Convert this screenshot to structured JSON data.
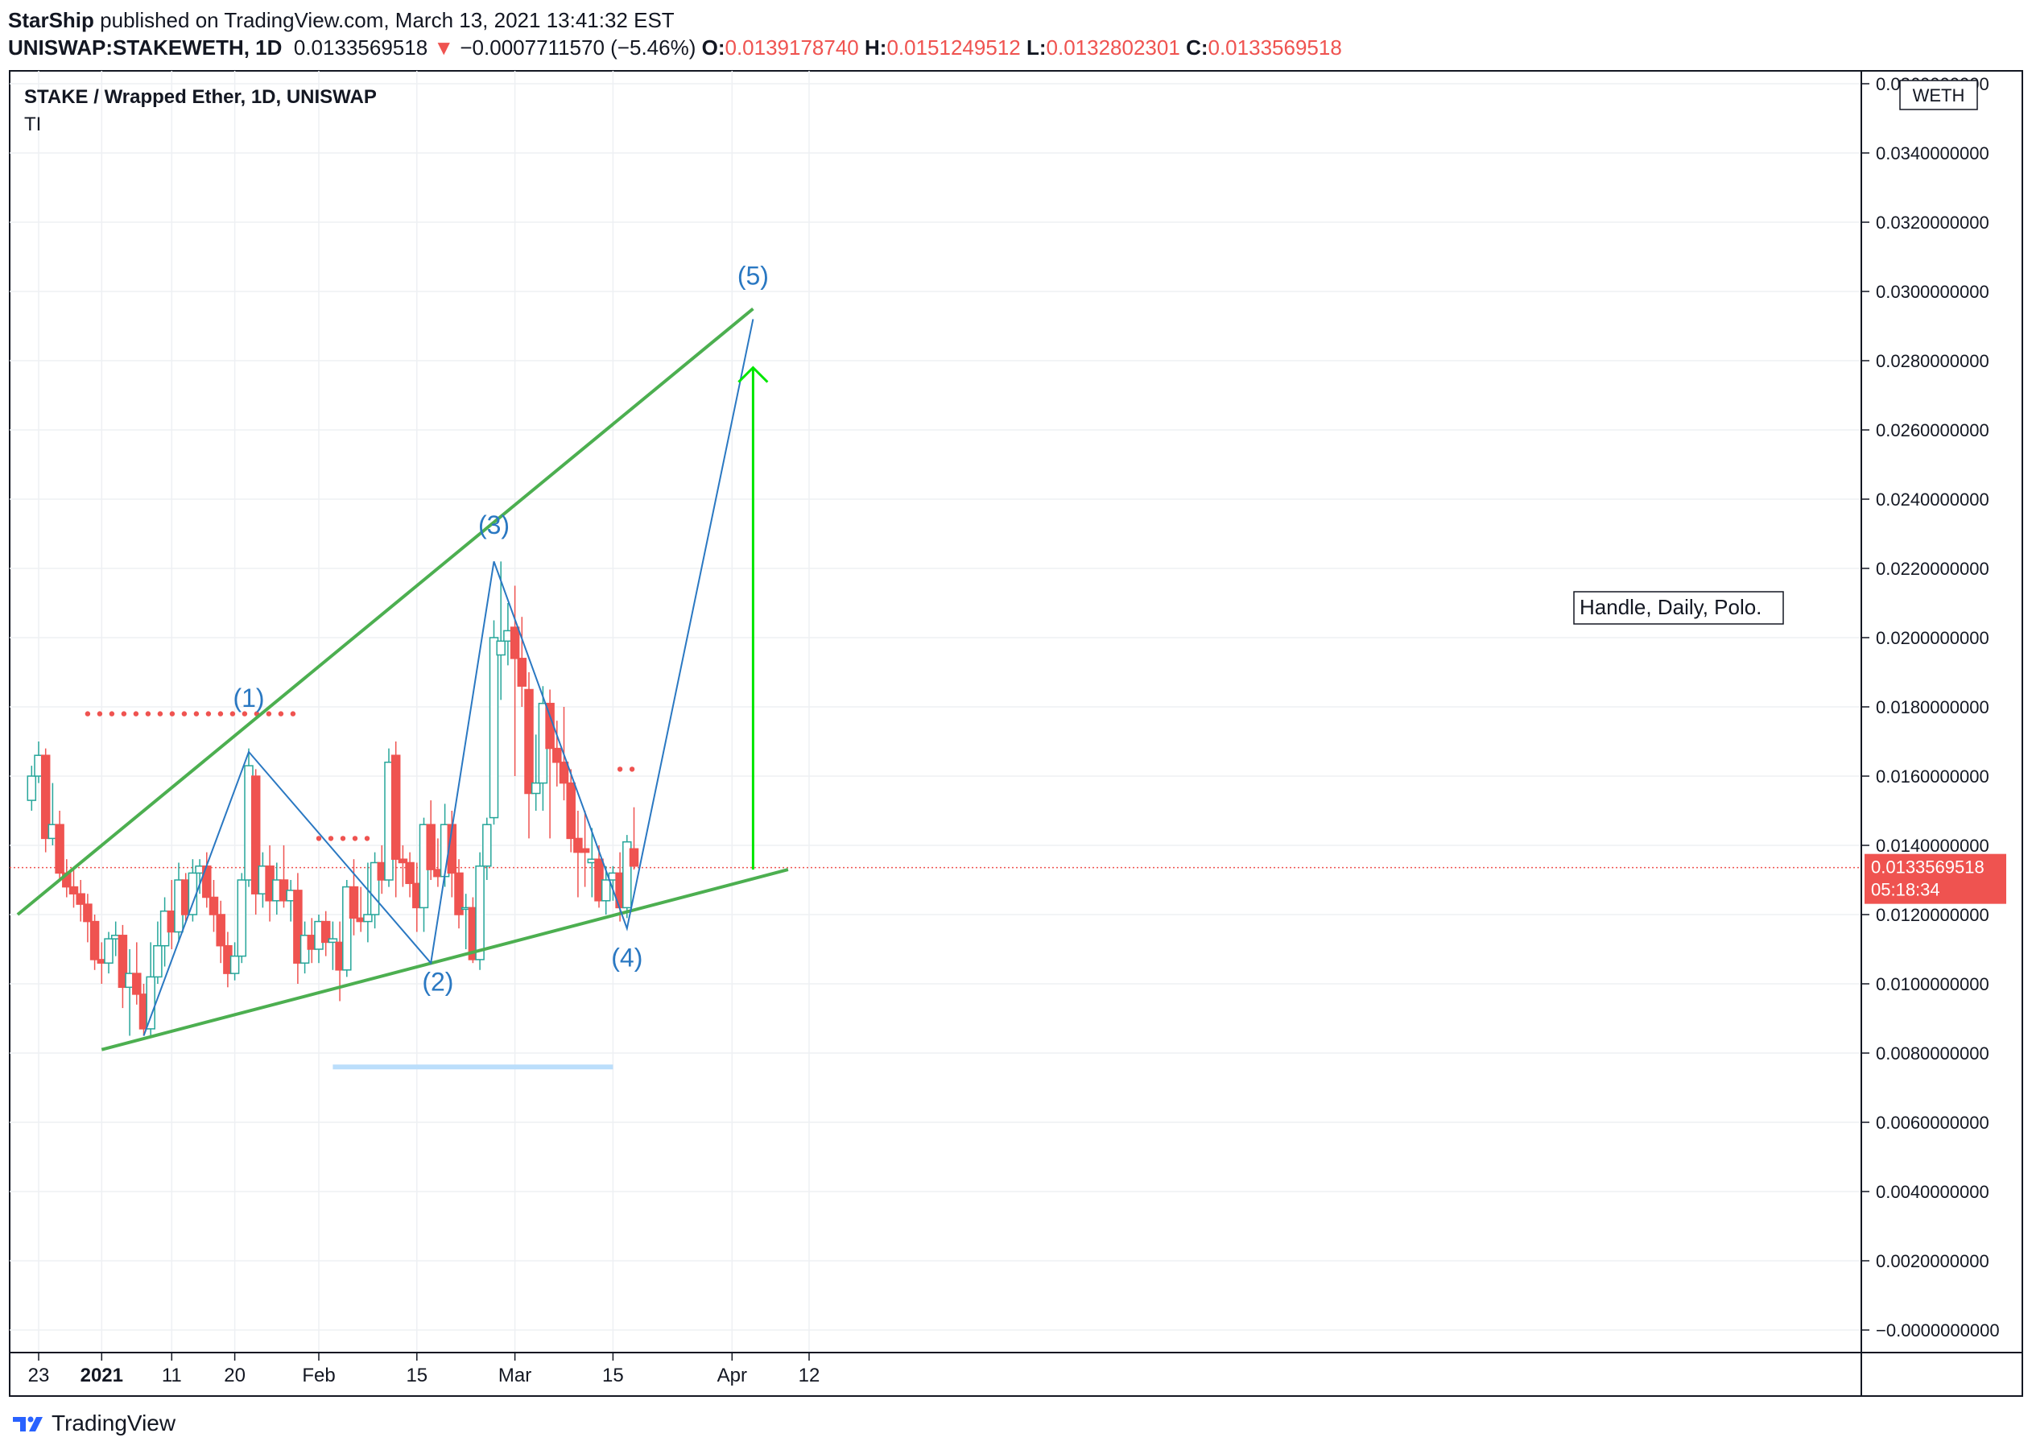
{
  "header": {
    "author": "StarShip",
    "published": "published on TradingView.com, March 13, 2021 13:41:32 EST"
  },
  "ticker": {
    "symbol": "UNISWAP:STAKEWETH, 1D",
    "last": "0.0133569518",
    "arrow": "▼",
    "change": "−0.0007711570 (−5.46%)",
    "o_label": "O:",
    "o": "0.0139178740",
    "h_label": "H:",
    "h": "0.0151249512",
    "l_label": "L:",
    "l": "0.0132802301",
    "c_label": "C:",
    "c": "0.0133569518"
  },
  "legend": {
    "title": "STAKE / Wrapped Ether, 1D, UNISWAP",
    "indicator": "TI"
  },
  "currency": "WETH",
  "price_tag": {
    "price": "0.0133569518",
    "countdown": "05:18:34"
  },
  "footer": {
    "brand": "TradingView"
  },
  "annotation": {
    "note": "Handle, Daily, Polo."
  },
  "colors": {
    "up": "#26a69a",
    "down": "#ef5350",
    "trend": "#4caf50",
    "wave": "#2a78c2",
    "target_arrow": "#00e600",
    "support": "#bbdefb"
  },
  "wave_labels": [
    "(1)",
    "(2)",
    "(3)",
    "(4)",
    "(5)"
  ],
  "chart_data": {
    "type": "candlestick",
    "title": "STAKE / Wrapped Ether, 1D, UNISWAP",
    "y_range": [
      -0.0005,
      0.036
    ],
    "y_ticks": [
      "0.0360000000",
      "0.0340000000",
      "0.0320000000",
      "0.0300000000",
      "0.0280000000",
      "0.0260000000",
      "0.0240000000",
      "0.0220000000",
      "0.0200000000",
      "0.0180000000",
      "0.0160000000",
      "0.0140000000",
      "0.0120000000",
      "0.0100000000",
      "0.0080000000",
      "0.0060000000",
      "0.0040000000",
      "0.0020000000",
      "−0.0000000000"
    ],
    "x_ticks": [
      {
        "label": "23",
        "date": "2020-12-23"
      },
      {
        "label": "2021",
        "date": "2021-01-01"
      },
      {
        "label": "11",
        "date": "2021-01-11"
      },
      {
        "label": "20",
        "date": "2021-01-20"
      },
      {
        "label": "Feb",
        "date": "2021-02-01"
      },
      {
        "label": "15",
        "date": "2021-02-15"
      },
      {
        "label": "Mar",
        "date": "2021-03-01"
      },
      {
        "label": "15",
        "date": "2021-03-15"
      },
      {
        "label": "Apr",
        "date": "2021-04-01"
      },
      {
        "label": "12",
        "date": "2021-04-12"
      }
    ],
    "candles": [
      {
        "d": "2020-12-22",
        "o": 0.0153,
        "h": 0.0163,
        "l": 0.015,
        "c": 0.016
      },
      {
        "d": "2020-12-23",
        "o": 0.016,
        "h": 0.017,
        "l": 0.0158,
        "c": 0.0166
      },
      {
        "d": "2020-12-24",
        "o": 0.0166,
        "h": 0.0168,
        "l": 0.0138,
        "c": 0.0142
      },
      {
        "d": "2020-12-25",
        "o": 0.0142,
        "h": 0.0158,
        "l": 0.014,
        "c": 0.0146
      },
      {
        "d": "2020-12-26",
        "o": 0.0146,
        "h": 0.015,
        "l": 0.013,
        "c": 0.0132
      },
      {
        "d": "2020-12-27",
        "o": 0.0132,
        "h": 0.0136,
        "l": 0.0125,
        "c": 0.0128
      },
      {
        "d": "2020-12-28",
        "o": 0.0128,
        "h": 0.0133,
        "l": 0.0122,
        "c": 0.0126
      },
      {
        "d": "2020-12-29",
        "o": 0.0126,
        "h": 0.013,
        "l": 0.0118,
        "c": 0.0123
      },
      {
        "d": "2020-12-30",
        "o": 0.0123,
        "h": 0.0126,
        "l": 0.0112,
        "c": 0.0118
      },
      {
        "d": "2020-12-31",
        "o": 0.0118,
        "h": 0.012,
        "l": 0.0104,
        "c": 0.0107
      },
      {
        "d": "2021-01-01",
        "o": 0.0107,
        "h": 0.0112,
        "l": 0.01,
        "c": 0.0106
      },
      {
        "d": "2021-01-02",
        "o": 0.0106,
        "h": 0.0115,
        "l": 0.0103,
        "c": 0.0113
      },
      {
        "d": "2021-01-03",
        "o": 0.0113,
        "h": 0.0118,
        "l": 0.0108,
        "c": 0.0114
      },
      {
        "d": "2021-01-04",
        "o": 0.0114,
        "h": 0.0117,
        "l": 0.0093,
        "c": 0.0099
      },
      {
        "d": "2021-01-05",
        "o": 0.0099,
        "h": 0.011,
        "l": 0.0085,
        "c": 0.0103
      },
      {
        "d": "2021-01-06",
        "o": 0.0103,
        "h": 0.0112,
        "l": 0.0094,
        "c": 0.0097
      },
      {
        "d": "2021-01-07",
        "o": 0.0097,
        "h": 0.01,
        "l": 0.0085,
        "c": 0.0087
      },
      {
        "d": "2021-01-08",
        "o": 0.0087,
        "h": 0.0112,
        "l": 0.0085,
        "c": 0.0102
      },
      {
        "d": "2021-01-09",
        "o": 0.0102,
        "h": 0.0118,
        "l": 0.01,
        "c": 0.0111
      },
      {
        "d": "2021-01-10",
        "o": 0.0111,
        "h": 0.0125,
        "l": 0.0105,
        "c": 0.0121
      },
      {
        "d": "2021-01-11",
        "o": 0.0121,
        "h": 0.013,
        "l": 0.011,
        "c": 0.0115
      },
      {
        "d": "2021-01-12",
        "o": 0.0115,
        "h": 0.0135,
        "l": 0.0112,
        "c": 0.013
      },
      {
        "d": "2021-01-13",
        "o": 0.013,
        "h": 0.0132,
        "l": 0.0118,
        "c": 0.012
      },
      {
        "d": "2021-01-14",
        "o": 0.012,
        "h": 0.0136,
        "l": 0.0118,
        "c": 0.0132
      },
      {
        "d": "2021-01-15",
        "o": 0.0132,
        "h": 0.0136,
        "l": 0.0126,
        "c": 0.0134
      },
      {
        "d": "2021-01-16",
        "o": 0.0134,
        "h": 0.0138,
        "l": 0.0122,
        "c": 0.0125
      },
      {
        "d": "2021-01-17",
        "o": 0.0125,
        "h": 0.013,
        "l": 0.0115,
        "c": 0.012
      },
      {
        "d": "2021-01-18",
        "o": 0.012,
        "h": 0.0124,
        "l": 0.0106,
        "c": 0.0111
      },
      {
        "d": "2021-01-19",
        "o": 0.0111,
        "h": 0.0115,
        "l": 0.0099,
        "c": 0.0103
      },
      {
        "d": "2021-01-20",
        "o": 0.0103,
        "h": 0.0112,
        "l": 0.0101,
        "c": 0.0108
      },
      {
        "d": "2021-01-21",
        "o": 0.0108,
        "h": 0.0132,
        "l": 0.0106,
        "c": 0.013
      },
      {
        "d": "2021-01-22",
        "o": 0.013,
        "h": 0.0168,
        "l": 0.0128,
        "c": 0.0163
      },
      {
        "d": "2021-01-23",
        "o": 0.016,
        "h": 0.0162,
        "l": 0.012,
        "c": 0.0126
      },
      {
        "d": "2021-01-24",
        "o": 0.0126,
        "h": 0.0138,
        "l": 0.0122,
        "c": 0.0134
      },
      {
        "d": "2021-01-25",
        "o": 0.0134,
        "h": 0.014,
        "l": 0.0118,
        "c": 0.0124
      },
      {
        "d": "2021-01-26",
        "o": 0.0124,
        "h": 0.0135,
        "l": 0.012,
        "c": 0.013
      },
      {
        "d": "2021-01-27",
        "o": 0.013,
        "h": 0.014,
        "l": 0.0122,
        "c": 0.0124
      },
      {
        "d": "2021-01-28",
        "o": 0.0124,
        "h": 0.013,
        "l": 0.0118,
        "c": 0.0127
      },
      {
        "d": "2021-01-29",
        "o": 0.0127,
        "h": 0.0132,
        "l": 0.01,
        "c": 0.0106
      },
      {
        "d": "2021-01-30",
        "o": 0.0106,
        "h": 0.0118,
        "l": 0.0103,
        "c": 0.0114
      },
      {
        "d": "2021-01-31",
        "o": 0.0114,
        "h": 0.0119,
        "l": 0.0106,
        "c": 0.011
      },
      {
        "d": "2021-02-01",
        "o": 0.011,
        "h": 0.012,
        "l": 0.0106,
        "c": 0.0118
      },
      {
        "d": "2021-02-02",
        "o": 0.0118,
        "h": 0.0121,
        "l": 0.0108,
        "c": 0.0112
      },
      {
        "d": "2021-02-03",
        "o": 0.0112,
        "h": 0.0118,
        "l": 0.0104,
        "c": 0.0113
      },
      {
        "d": "2021-02-04",
        "o": 0.0112,
        "h": 0.0118,
        "l": 0.0095,
        "c": 0.0104
      },
      {
        "d": "2021-02-05",
        "o": 0.0104,
        "h": 0.013,
        "l": 0.0102,
        "c": 0.0128
      },
      {
        "d": "2021-02-06",
        "o": 0.0128,
        "h": 0.0136,
        "l": 0.0114,
        "c": 0.0119
      },
      {
        "d": "2021-02-07",
        "o": 0.0119,
        "h": 0.0128,
        "l": 0.0115,
        "c": 0.0118
      },
      {
        "d": "2021-02-08",
        "o": 0.0118,
        "h": 0.0135,
        "l": 0.0112,
        "c": 0.012
      },
      {
        "d": "2021-02-09",
        "o": 0.012,
        "h": 0.0138,
        "l": 0.0116,
        "c": 0.0135
      },
      {
        "d": "2021-02-10",
        "o": 0.0135,
        "h": 0.014,
        "l": 0.0126,
        "c": 0.013
      },
      {
        "d": "2021-02-11",
        "o": 0.013,
        "h": 0.0168,
        "l": 0.0128,
        "c": 0.0164
      },
      {
        "d": "2021-02-12",
        "o": 0.0166,
        "h": 0.017,
        "l": 0.0125,
        "c": 0.0136
      },
      {
        "d": "2021-02-13",
        "o": 0.0136,
        "h": 0.014,
        "l": 0.0128,
        "c": 0.0135
      },
      {
        "d": "2021-02-14",
        "o": 0.0135,
        "h": 0.0138,
        "l": 0.0125,
        "c": 0.0129
      },
      {
        "d": "2021-02-15",
        "o": 0.0129,
        "h": 0.0135,
        "l": 0.0115,
        "c": 0.0122
      },
      {
        "d": "2021-02-16",
        "o": 0.0122,
        "h": 0.0148,
        "l": 0.0115,
        "c": 0.0146
      },
      {
        "d": "2021-02-17",
        "o": 0.0146,
        "h": 0.0153,
        "l": 0.013,
        "c": 0.0133
      },
      {
        "d": "2021-02-18",
        "o": 0.0133,
        "h": 0.0142,
        "l": 0.0128,
        "c": 0.0131
      },
      {
        "d": "2021-02-19",
        "o": 0.0131,
        "h": 0.0152,
        "l": 0.0128,
        "c": 0.0146
      },
      {
        "d": "2021-02-20",
        "o": 0.0146,
        "h": 0.015,
        "l": 0.0125,
        "c": 0.0132
      },
      {
        "d": "2021-02-21",
        "o": 0.0132,
        "h": 0.0136,
        "l": 0.0116,
        "c": 0.012
      },
      {
        "d": "2021-02-22",
        "o": 0.0122,
        "h": 0.0126,
        "l": 0.011,
        "c": 0.0122
      },
      {
        "d": "2021-02-23",
        "o": 0.0122,
        "h": 0.0125,
        "l": 0.0106,
        "c": 0.0107
      },
      {
        "d": "2021-02-24",
        "o": 0.0107,
        "h": 0.0138,
        "l": 0.0104,
        "c": 0.0134
      },
      {
        "d": "2021-02-25",
        "o": 0.0134,
        "h": 0.0148,
        "l": 0.013,
        "c": 0.0146
      },
      {
        "d": "2021-02-26",
        "o": 0.0148,
        "h": 0.0205,
        "l": 0.0146,
        "c": 0.02
      },
      {
        "d": "2021-02-27",
        "o": 0.0195,
        "h": 0.0222,
        "l": 0.0182,
        "c": 0.0199
      },
      {
        "d": "2021-02-28",
        "o": 0.0199,
        "h": 0.021,
        "l": 0.0192,
        "c": 0.0202
      },
      {
        "d": "2021-03-01",
        "o": 0.0203,
        "h": 0.0215,
        "l": 0.016,
        "c": 0.0194
      },
      {
        "d": "2021-03-02",
        "o": 0.0194,
        "h": 0.0206,
        "l": 0.018,
        "c": 0.0186
      },
      {
        "d": "2021-03-03",
        "o": 0.0185,
        "h": 0.019,
        "l": 0.0142,
        "c": 0.0155
      },
      {
        "d": "2021-03-04",
        "o": 0.0155,
        "h": 0.0172,
        "l": 0.015,
        "c": 0.0158
      },
      {
        "d": "2021-03-05",
        "o": 0.0158,
        "h": 0.0186,
        "l": 0.015,
        "c": 0.0181
      },
      {
        "d": "2021-03-06",
        "o": 0.0181,
        "h": 0.0185,
        "l": 0.0142,
        "c": 0.0168
      },
      {
        "d": "2021-03-07",
        "o": 0.0168,
        "h": 0.0176,
        "l": 0.0157,
        "c": 0.0164
      },
      {
        "d": "2021-03-08",
        "o": 0.0164,
        "h": 0.018,
        "l": 0.0153,
        "c": 0.0158
      },
      {
        "d": "2021-03-09",
        "o": 0.0158,
        "h": 0.0162,
        "l": 0.0138,
        "c": 0.0142
      },
      {
        "d": "2021-03-10",
        "o": 0.0142,
        "h": 0.015,
        "l": 0.0125,
        "c": 0.0138
      },
      {
        "d": "2021-03-11",
        "o": 0.0139,
        "h": 0.015,
        "l": 0.0128,
        "c": 0.0138
      },
      {
        "d": "2021-03-12",
        "o": 0.0135,
        "h": 0.0145,
        "l": 0.0125,
        "c": 0.0136
      },
      {
        "d": "2021-03-13",
        "o": 0.0136,
        "h": 0.014,
        "l": 0.0122,
        "c": 0.0124
      },
      {
        "d": "2021-03-14",
        "o": 0.0124,
        "h": 0.0134,
        "l": 0.012,
        "c": 0.013
      },
      {
        "d": "2021-03-15",
        "o": 0.013,
        "h": 0.0134,
        "l": 0.0124,
        "c": 0.0132
      },
      {
        "d": "2021-03-16",
        "o": 0.0132,
        "h": 0.0138,
        "l": 0.0118,
        "c": 0.0122
      },
      {
        "d": "2021-03-17",
        "o": 0.0122,
        "h": 0.0143,
        "l": 0.0119,
        "c": 0.0141
      },
      {
        "d": "2021-03-18",
        "o": 0.0139,
        "h": 0.0151,
        "l": 0.0133,
        "c": 0.0134
      }
    ],
    "current_price": 0.0133569518,
    "trendlines": [
      {
        "name": "upper-trend",
        "from": {
          "d": "2020-12-20",
          "v": 0.012
        },
        "to": {
          "d": "2021-04-04",
          "v": 0.0295
        }
      },
      {
        "name": "lower-trend",
        "from": {
          "d": "2021-01-01",
          "v": 0.0081
        },
        "to": {
          "d": "2021-04-09",
          "v": 0.0133
        }
      }
    ],
    "wave_path": [
      {
        "d": "2021-01-07",
        "v": 0.0085
      },
      {
        "d": "2021-01-22",
        "v": 0.0167
      },
      {
        "d": "2021-02-17",
        "v": 0.0106
      },
      {
        "d": "2021-02-26",
        "v": 0.0222
      },
      {
        "d": "2021-03-17",
        "v": 0.0116
      },
      {
        "d": "2021-04-04",
        "v": 0.0292
      }
    ],
    "wave_points": [
      {
        "label": "(1)",
        "d": "2021-01-22",
        "v": 0.018
      },
      {
        "label": "(2)",
        "d": "2021-02-18",
        "v": 0.0098
      },
      {
        "label": "(3)",
        "d": "2021-02-26",
        "v": 0.023
      },
      {
        "label": "(4)",
        "d": "2021-03-17",
        "v": 0.0105
      },
      {
        "label": "(5)",
        "d": "2021-04-04",
        "v": 0.0302
      }
    ],
    "dotted_resistance": [
      {
        "from": "2020-12-30",
        "to": "2021-01-29",
        "v": 0.0178
      },
      {
        "from": "2021-02-01",
        "to": "2021-02-09",
        "v": 0.0142
      },
      {
        "from": "2021-03-16",
        "to": "2021-03-18",
        "v": 0.0162
      }
    ],
    "support_zone": {
      "from": "2021-02-03",
      "to": "2021-03-15",
      "v": 0.0076
    },
    "target_arrow": {
      "d": "2021-04-04",
      "from": 0.0133,
      "to": 0.0278
    }
  }
}
